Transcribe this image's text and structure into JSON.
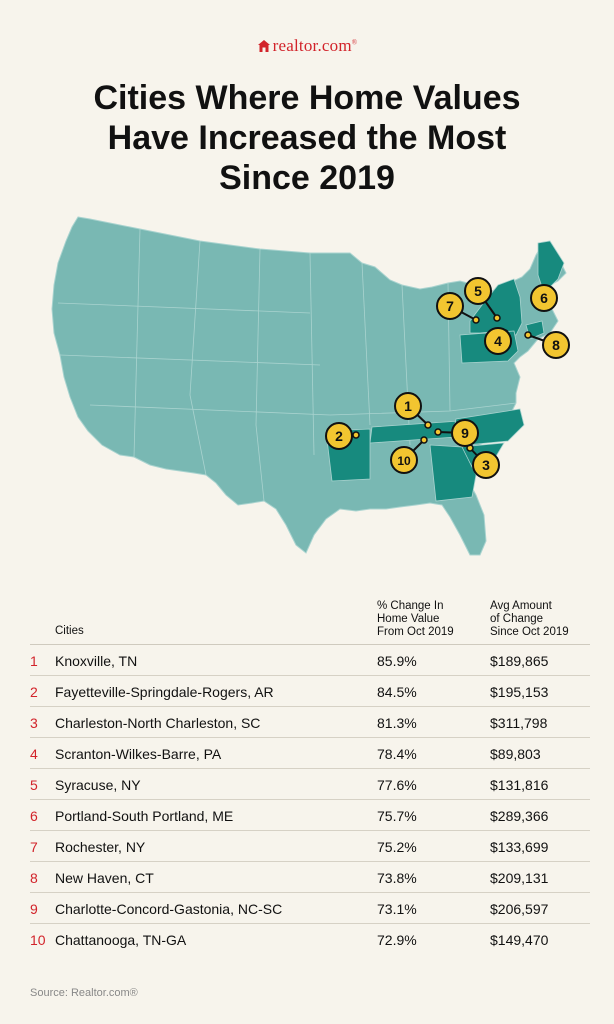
{
  "logo": {
    "text": "realtor.com",
    "mark": "®"
  },
  "title": {
    "line1": "Cities Where Home Values",
    "line2": "Have Increased the Most",
    "line3": "Since 2019"
  },
  "colors": {
    "background": "#f7f4ec",
    "map_base": "#79b8b3",
    "map_highlight": "#178a7e",
    "marker": "#f2c530",
    "brand": "#d2232a"
  },
  "map": {
    "markers": [
      "1",
      "2",
      "3",
      "4",
      "5",
      "6",
      "7",
      "8",
      "9",
      "10"
    ]
  },
  "table": {
    "headers": {
      "cities": "Cities",
      "pct_line1": "% Change In",
      "pct_line2": "Home Value",
      "pct_line3": "From Oct 2019",
      "amt_line1": "Avg Amount",
      "amt_line2": "of Change",
      "amt_line3": "Since Oct 2019"
    },
    "rows": [
      {
        "rank": "1",
        "city": "Knoxville, TN",
        "pct": "85.9%",
        "amt": "$189,865"
      },
      {
        "rank": "2",
        "city": "Fayetteville-Springdale-Rogers, AR",
        "pct": "84.5%",
        "amt": "$195,153"
      },
      {
        "rank": "3",
        "city": "Charleston-North Charleston, SC",
        "pct": "81.3%",
        "amt": "$311,798"
      },
      {
        "rank": "4",
        "city": "Scranton-Wilkes-Barre, PA",
        "pct": "78.4%",
        "amt": "$89,803"
      },
      {
        "rank": "5",
        "city": "Syracuse, NY",
        "pct": "77.6%",
        "amt": "$131,816"
      },
      {
        "rank": "6",
        "city": "Portland-South Portland, ME",
        "pct": "75.7%",
        "amt": "$289,366"
      },
      {
        "rank": "7",
        "city": "Rochester, NY",
        "pct": "75.2%",
        "amt": "$133,699"
      },
      {
        "rank": "8",
        "city": "New Haven, CT",
        "pct": "73.8%",
        "amt": "$209,131"
      },
      {
        "rank": "9",
        "city": "Charlotte-Concord-Gastonia, NC-SC",
        "pct": "73.1%",
        "amt": "$206,597"
      },
      {
        "rank": "10",
        "city": "Chattanooga, TN-GA",
        "pct": "72.9%",
        "amt": "$149,470"
      }
    ]
  },
  "source": "Source: Realtor.com®"
}
